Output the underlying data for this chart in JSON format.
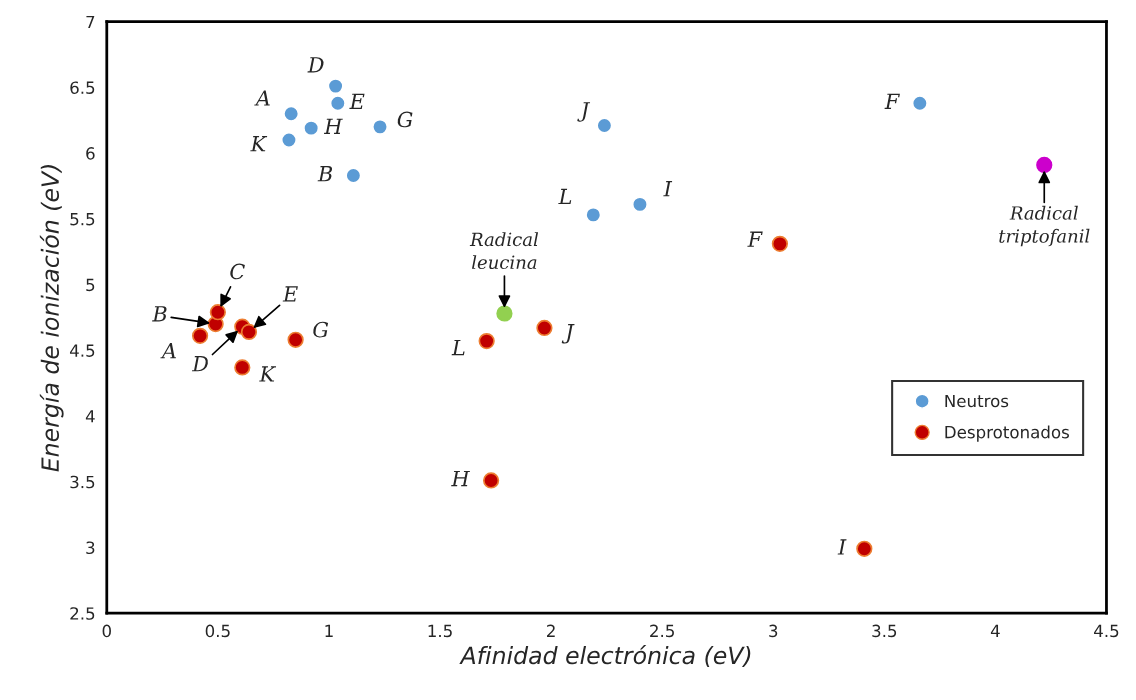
{
  "chart_data": {
    "type": "scatter",
    "xlabel": "Afinidad electrónica (eV)",
    "ylabel": "Energía de ionización (eV)",
    "xlim": [
      0,
      4.5
    ],
    "xticks": [
      0,
      0.5,
      1,
      1.5,
      2,
      2.5,
      3,
      3.5,
      4,
      4.5
    ],
    "ylim": [
      2.5,
      7
    ],
    "yticks": [
      2.5,
      3,
      3.5,
      4,
      4.5,
      5,
      5.5,
      6,
      6.5,
      7
    ],
    "legend": "right",
    "marker": "circle",
    "grid": false,
    "series": [
      {
        "name": "Neutros",
        "color": "#5b9bd5",
        "x": [
          0.83,
          1.03,
          1.04,
          0.92,
          0.82,
          1.23,
          1.11,
          2.24,
          2.19,
          2.4,
          3.66
        ],
        "values": [
          6.3,
          6.51,
          6.38,
          6.19,
          6.1,
          6.2,
          5.83,
          6.21,
          5.53,
          5.61,
          6.38
        ]
      },
      {
        "name": "Desprotonados",
        "color": "#c00000",
        "x": [
          0.42,
          0.49,
          0.5,
          0.61,
          0.64,
          0.85,
          0.61,
          1.71,
          1.97,
          1.73,
          3.03,
          3.41
        ],
        "values": [
          4.61,
          4.7,
          4.79,
          4.68,
          4.64,
          4.58,
          4.37,
          4.57,
          4.67,
          3.51,
          5.31,
          2.99
        ]
      },
      {
        "color": "#92d050",
        "x": [
          1.79
        ],
        "values": [
          4.78
        ]
      },
      {
        "color": "#cc00cc",
        "x": [
          4.22
        ],
        "values": [
          5.91
        ]
      }
    ],
    "annotations": [
      {
        "text": "A",
        "x": 0.83,
        "y": 6.3
      },
      {
        "text": "D",
        "x": 1.03,
        "y": 6.51
      },
      {
        "text": "E",
        "x": 1.04,
        "y": 6.38
      },
      {
        "text": "H",
        "x": 0.92,
        "y": 6.19
      },
      {
        "text": "K",
        "x": 0.82,
        "y": 6.1
      },
      {
        "text": "G",
        "x": 1.23,
        "y": 6.2
      },
      {
        "text": "B",
        "x": 1.11,
        "y": 5.83
      },
      {
        "text": "J",
        "x": 2.24,
        "y": 6.21
      },
      {
        "text": "L",
        "x": 2.19,
        "y": 5.53
      },
      {
        "text": "I",
        "x": 2.4,
        "y": 5.61
      },
      {
        "text": "F",
        "x": 3.66,
        "y": 6.38
      },
      {
        "text": "A",
        "x": 0.42,
        "y": 4.61
      },
      {
        "text": "B",
        "x": 0.49,
        "y": 4.7
      },
      {
        "text": "C",
        "x": 0.5,
        "y": 4.79
      },
      {
        "text": "D",
        "x": 0.61,
        "y": 4.68
      },
      {
        "text": "E",
        "x": 0.64,
        "y": 4.64
      },
      {
        "text": "G",
        "x": 0.85,
        "y": 4.58
      },
      {
        "text": "K",
        "x": 0.61,
        "y": 4.37
      },
      {
        "text": "L",
        "x": 1.71,
        "y": 4.57
      },
      {
        "text": "J",
        "x": 1.97,
        "y": 4.67
      },
      {
        "text": "H",
        "x": 1.73,
        "y": 3.51
      },
      {
        "text": "F",
        "x": 3.03,
        "y": 5.31
      },
      {
        "text": "I",
        "x": 3.41,
        "y": 2.99
      },
      {
        "text": "Radical\nleucina",
        "x": 1.79,
        "y": 4.78
      },
      {
        "text": "Radical\ntriptofanil",
        "x": 4.22,
        "y": 5.91
      }
    ]
  }
}
